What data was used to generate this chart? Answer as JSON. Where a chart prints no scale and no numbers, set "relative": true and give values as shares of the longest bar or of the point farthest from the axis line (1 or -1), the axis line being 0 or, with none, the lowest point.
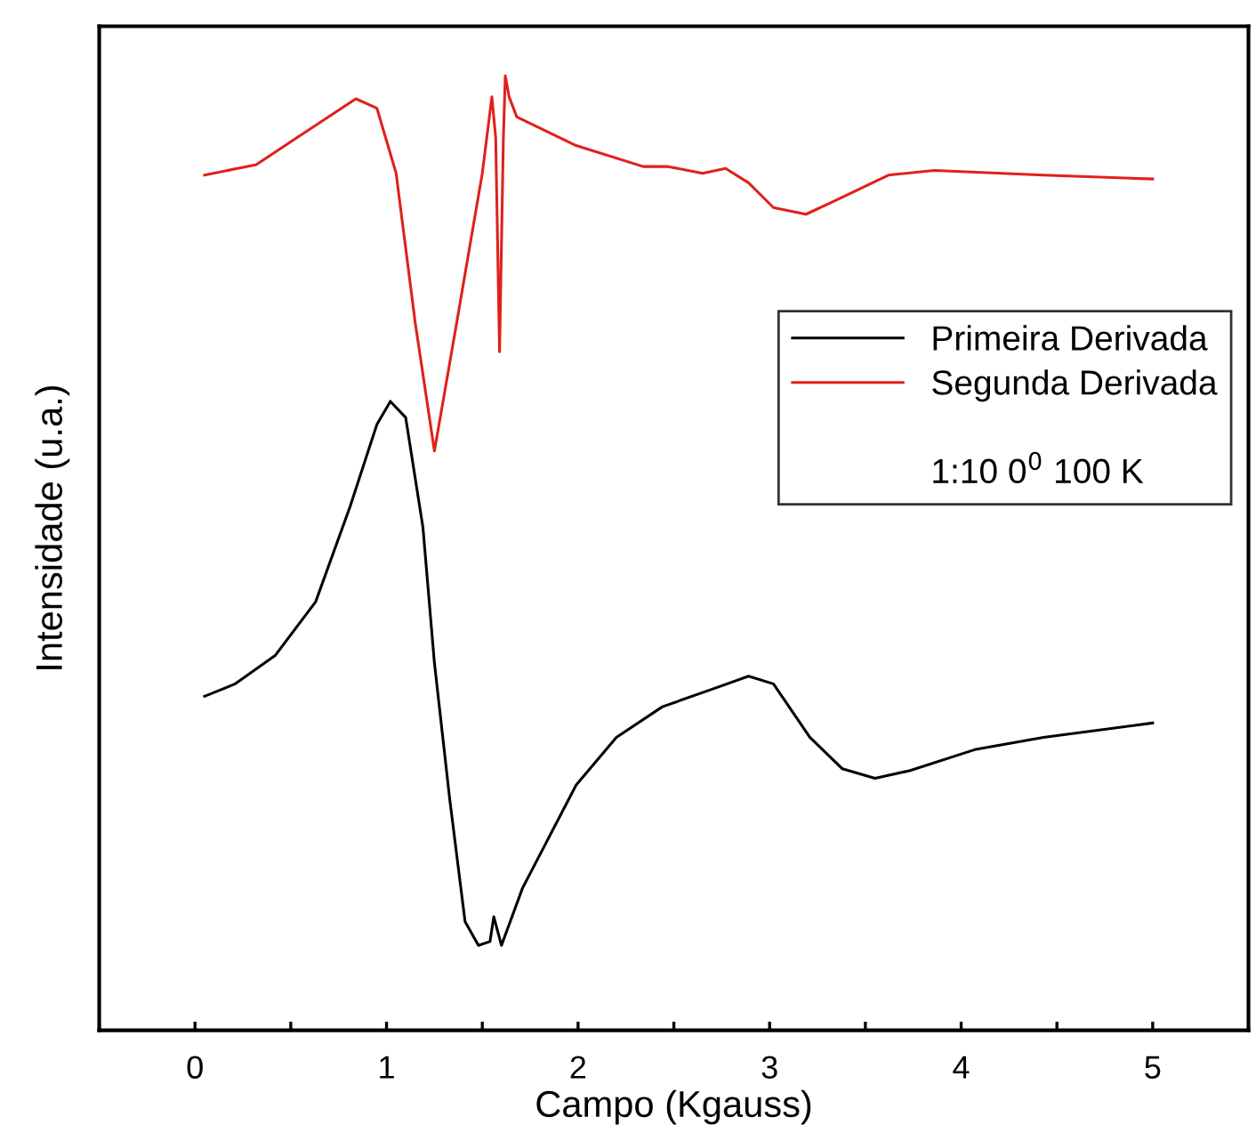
{
  "chart_data": {
    "type": "line",
    "relative": true,
    "xlabel": "Campo (Kgauss)",
    "ylabel": "Intensidade (u.a.)",
    "xlim": [
      -0.5,
      5.5
    ],
    "xticks": [
      0,
      {
        "value": 0.5,
        "label": null
      },
      1,
      {
        "value": 1.5,
        "label": null
      },
      2,
      {
        "value": 2.5,
        "label": null
      },
      3,
      {
        "value": 3.5,
        "label": null
      },
      4,
      {
        "value": 4.5,
        "label": null
      },
      5
    ],
    "tick_labels": "x",
    "grid": false,
    "legend": "right",
    "marker": "none",
    "line_style": "solid",
    "annotations": [
      "1:10 0$^{0}$ 100 K"
    ],
    "series": [
      {
        "name": "Primeira Derivada",
        "color": "#000000",
        "x": [
          0.05,
          0.21,
          0.42,
          0.63,
          0.81,
          0.95,
          1.02,
          1.1,
          1.19,
          1.25,
          1.33,
          1.41,
          1.48,
          1.54,
          1.56,
          1.6,
          1.71,
          1.99,
          2.2,
          2.44,
          2.68,
          2.89,
          3.02,
          3.21,
          3.38,
          3.55,
          3.73,
          4.07,
          4.43,
          5.0
        ],
        "values": [
          0.35,
          0.363,
          0.393,
          0.449,
          0.549,
          0.635,
          0.659,
          0.642,
          0.527,
          0.385,
          0.242,
          0.114,
          0.089,
          0.093,
          0.119,
          0.089,
          0.149,
          0.257,
          0.307,
          0.339,
          0.356,
          0.371,
          0.363,
          0.307,
          0.274,
          0.264,
          0.272,
          0.294,
          0.307,
          0.322
        ]
      },
      {
        "name": "Segunda Derivada",
        "color": "#e0201b",
        "x": [
          0.05,
          0.32,
          0.53,
          0.84,
          0.95,
          1.05,
          1.15,
          1.25,
          1.36,
          1.5,
          1.55,
          1.57,
          1.59,
          1.61,
          1.62,
          1.64,
          1.68,
          1.99,
          2.34,
          2.47,
          2.65,
          2.77,
          2.89,
          3.02,
          3.19,
          3.35,
          3.62,
          3.86,
          4.43,
          5.0
        ],
        "values": [
          0.896,
          0.907,
          0.935,
          0.976,
          0.966,
          0.898,
          0.741,
          0.607,
          0.734,
          0.898,
          0.978,
          0.935,
          0.711,
          0.935,
          1.0,
          0.978,
          0.957,
          0.927,
          0.905,
          0.905,
          0.898,
          0.903,
          0.888,
          0.862,
          0.855,
          0.87,
          0.896,
          0.901,
          0.896,
          0.892
        ]
      }
    ]
  }
}
